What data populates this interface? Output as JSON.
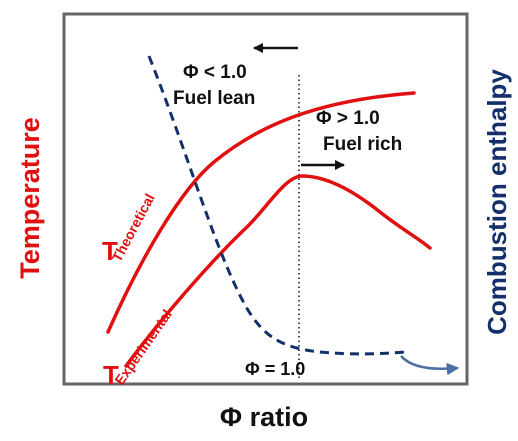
{
  "labels": {
    "x_axis": "Φ ratio",
    "y_left": "Temperature",
    "y_right": "Combustion enthalpy",
    "fuel_lean_phi": "Φ < 1.0",
    "fuel_lean_text": "Fuel lean",
    "fuel_rich_phi": "Φ > 1.0",
    "fuel_rich_text": "Fuel rich",
    "stoich": "Φ = 1.0",
    "t_theoretical_T": "T",
    "t_theoretical_sub": "Theoretical",
    "t_experimental_T": "T",
    "t_experimental_sub": "Experimental"
  },
  "colors": {
    "temperature_curves": "#e01010",
    "enthalpy_curve": "#13306a",
    "enthalpy_arrow": "#4a6fa0",
    "frame": "#666666",
    "text": "#111111"
  },
  "chart_data": {
    "type": "line",
    "series": [
      {
        "name": "T Theoretical",
        "line": "solid"
      },
      {
        "name": "T Experimental",
        "line": "solid"
      },
      {
        "name": "Combustion enthalpy",
        "line": "dashed"
      }
    ],
    "reference_lines": [
      {
        "label": "Φ = 1.0",
        "line": "dotted",
        "orientation": "vertical"
      }
    ],
    "regions": [
      {
        "label": "Φ < 1.0 Fuel lean",
        "direction": "left"
      },
      {
        "label": "Φ > 1.0 Fuel rich",
        "direction": "right"
      }
    ]
  }
}
